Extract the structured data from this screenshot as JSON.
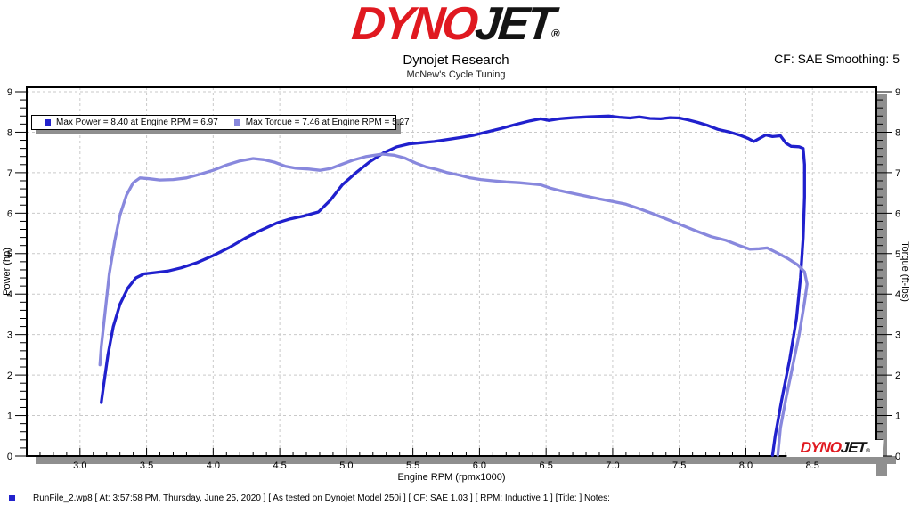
{
  "header": {
    "logo": {
      "dyno": "DYNO",
      "jet": "JET",
      "reg": "®"
    },
    "title": "Dynojet Research",
    "subtitle": "McNew's Cycle Tuning",
    "smoothing_label": "CF: SAE Smoothing: 5"
  },
  "legend": {
    "power_label": "Max Power = 8.40 at Engine RPM = 6.97",
    "torque_label": "Max Torque = 7.46 at Engine RPM = 5.27",
    "power_color": "#2222cc",
    "torque_color": "#8888dd"
  },
  "chart_data": {
    "type": "line",
    "xlabel": "Engine RPM (rpmx1000)",
    "ylabel_left": "Power (hp)",
    "ylabel_right": "Torque (ft-lbs)",
    "xlim": [
      2.6,
      8.98
    ],
    "ylim": [
      0,
      9.11
    ],
    "grid": "dashed-major",
    "x_major_ticks": [
      3.0,
      3.5,
      4.0,
      4.5,
      5.0,
      5.5,
      6.0,
      6.5,
      7.0,
      7.5,
      8.0,
      8.5
    ],
    "x_tick_labels": [
      "3.0",
      "3.5",
      "4.0",
      "4.5",
      "5.0",
      "5.5",
      "6.0",
      "6.5",
      "7.0",
      "7.5",
      "8.0",
      "8.5"
    ],
    "x_minor_step": 0.1,
    "y_major_ticks": [
      0,
      1,
      2,
      3,
      4,
      5,
      6,
      7,
      8,
      9
    ],
    "y_tick_labels": [
      "0",
      "1",
      "2",
      "3",
      "4",
      "5",
      "6",
      "7",
      "8",
      "9"
    ],
    "y_minor_step": 0.2,
    "annotations": {
      "max_power": {
        "value": 8.4,
        "rpm": 6.97
      },
      "max_torque": {
        "value": 7.46,
        "rpm": 5.27
      }
    },
    "series": [
      {
        "id": "power-curve",
        "name": "Power (hp)",
        "color": "#2020cd",
        "points": [
          [
            3.16,
            1.32
          ],
          [
            3.18,
            1.8
          ],
          [
            3.21,
            2.5
          ],
          [
            3.25,
            3.2
          ],
          [
            3.3,
            3.75
          ],
          [
            3.36,
            4.15
          ],
          [
            3.42,
            4.4
          ],
          [
            3.48,
            4.5
          ],
          [
            3.56,
            4.53
          ],
          [
            3.66,
            4.57
          ],
          [
            3.76,
            4.65
          ],
          [
            3.88,
            4.78
          ],
          [
            4.0,
            4.95
          ],
          [
            4.12,
            5.15
          ],
          [
            4.24,
            5.38
          ],
          [
            4.36,
            5.58
          ],
          [
            4.48,
            5.76
          ],
          [
            4.58,
            5.86
          ],
          [
            4.68,
            5.93
          ],
          [
            4.79,
            6.03
          ],
          [
            4.88,
            6.32
          ],
          [
            4.97,
            6.7
          ],
          [
            5.08,
            7.02
          ],
          [
            5.18,
            7.28
          ],
          [
            5.28,
            7.49
          ],
          [
            5.38,
            7.64
          ],
          [
            5.47,
            7.71
          ],
          [
            5.56,
            7.74
          ],
          [
            5.66,
            7.77
          ],
          [
            5.76,
            7.82
          ],
          [
            5.86,
            7.87
          ],
          [
            5.95,
            7.92
          ],
          [
            6.05,
            8.0
          ],
          [
            6.16,
            8.09
          ],
          [
            6.27,
            8.19
          ],
          [
            6.38,
            8.28
          ],
          [
            6.46,
            8.33
          ],
          [
            6.52,
            8.29
          ],
          [
            6.6,
            8.33
          ],
          [
            6.7,
            8.36
          ],
          [
            6.82,
            8.38
          ],
          [
            6.97,
            8.4
          ],
          [
            7.05,
            8.37
          ],
          [
            7.13,
            8.35
          ],
          [
            7.2,
            8.38
          ],
          [
            7.28,
            8.34
          ],
          [
            7.36,
            8.33
          ],
          [
            7.43,
            8.36
          ],
          [
            7.5,
            8.35
          ],
          [
            7.57,
            8.3
          ],
          [
            7.64,
            8.24
          ],
          [
            7.71,
            8.17
          ],
          [
            7.79,
            8.07
          ],
          [
            7.88,
            8.0
          ],
          [
            7.96,
            7.92
          ],
          [
            8.02,
            7.84
          ],
          [
            8.06,
            7.77
          ],
          [
            8.11,
            7.86
          ],
          [
            8.15,
            7.93
          ],
          [
            8.2,
            7.89
          ],
          [
            8.26,
            7.91
          ],
          [
            8.3,
            7.73
          ],
          [
            8.34,
            7.65
          ],
          [
            8.4,
            7.64
          ],
          [
            8.43,
            7.6
          ],
          [
            8.44,
            7.2
          ],
          [
            8.44,
            6.4
          ],
          [
            8.43,
            5.4
          ],
          [
            8.41,
            4.4
          ],
          [
            8.38,
            3.4
          ],
          [
            8.33,
            2.4
          ],
          [
            8.27,
            1.4
          ],
          [
            8.22,
            0.5
          ],
          [
            8.2,
            0.02
          ]
        ]
      },
      {
        "id": "torque-curve",
        "name": "Torque (ft-lbs)",
        "color": "#8888dd",
        "points": [
          [
            3.15,
            2.25
          ],
          [
            3.16,
            2.7
          ],
          [
            3.19,
            3.6
          ],
          [
            3.22,
            4.5
          ],
          [
            3.26,
            5.3
          ],
          [
            3.3,
            5.95
          ],
          [
            3.35,
            6.45
          ],
          [
            3.4,
            6.75
          ],
          [
            3.45,
            6.87
          ],
          [
            3.52,
            6.85
          ],
          [
            3.6,
            6.82
          ],
          [
            3.7,
            6.83
          ],
          [
            3.8,
            6.87
          ],
          [
            3.9,
            6.96
          ],
          [
            4.0,
            7.06
          ],
          [
            4.1,
            7.19
          ],
          [
            4.2,
            7.29
          ],
          [
            4.3,
            7.35
          ],
          [
            4.38,
            7.32
          ],
          [
            4.46,
            7.26
          ],
          [
            4.54,
            7.16
          ],
          [
            4.62,
            7.11
          ],
          [
            4.72,
            7.09
          ],
          [
            4.8,
            7.06
          ],
          [
            4.88,
            7.1
          ],
          [
            4.96,
            7.2
          ],
          [
            5.05,
            7.31
          ],
          [
            5.15,
            7.4
          ],
          [
            5.27,
            7.46
          ],
          [
            5.36,
            7.43
          ],
          [
            5.44,
            7.36
          ],
          [
            5.52,
            7.24
          ],
          [
            5.6,
            7.14
          ],
          [
            5.68,
            7.08
          ],
          [
            5.76,
            7.0
          ],
          [
            5.85,
            6.94
          ],
          [
            5.93,
            6.87
          ],
          [
            6.01,
            6.83
          ],
          [
            6.1,
            6.8
          ],
          [
            6.2,
            6.77
          ],
          [
            6.3,
            6.75
          ],
          [
            6.4,
            6.72
          ],
          [
            6.46,
            6.7
          ],
          [
            6.53,
            6.62
          ],
          [
            6.61,
            6.55
          ],
          [
            6.7,
            6.49
          ],
          [
            6.8,
            6.42
          ],
          [
            6.9,
            6.35
          ],
          [
            7.0,
            6.29
          ],
          [
            7.1,
            6.22
          ],
          [
            7.2,
            6.11
          ],
          [
            7.3,
            5.99
          ],
          [
            7.4,
            5.86
          ],
          [
            7.5,
            5.73
          ],
          [
            7.62,
            5.57
          ],
          [
            7.74,
            5.42
          ],
          [
            7.85,
            5.33
          ],
          [
            7.95,
            5.2
          ],
          [
            8.03,
            5.11
          ],
          [
            8.1,
            5.12
          ],
          [
            8.16,
            5.14
          ],
          [
            8.24,
            5.01
          ],
          [
            8.32,
            4.87
          ],
          [
            8.39,
            4.72
          ],
          [
            8.44,
            4.55
          ],
          [
            8.46,
            4.25
          ],
          [
            8.44,
            3.8
          ],
          [
            8.4,
            3.0
          ],
          [
            8.35,
            2.2
          ],
          [
            8.3,
            1.4
          ],
          [
            8.26,
            0.7
          ],
          [
            8.24,
            0.02
          ]
        ]
      }
    ],
    "watermark": {
      "dyno": "DYNO",
      "jet": "JET",
      "reg": "®"
    }
  },
  "status_bar": {
    "text": "RunFile_2.wp8 [ At: 3:57:58 PM, Thursday, June 25, 2020 ] [ As tested on Dynojet Model 250i ] [ CF: SAE 1.03 ] [ RPM: Inductive 1 ] [Title: ]   Notes:"
  }
}
